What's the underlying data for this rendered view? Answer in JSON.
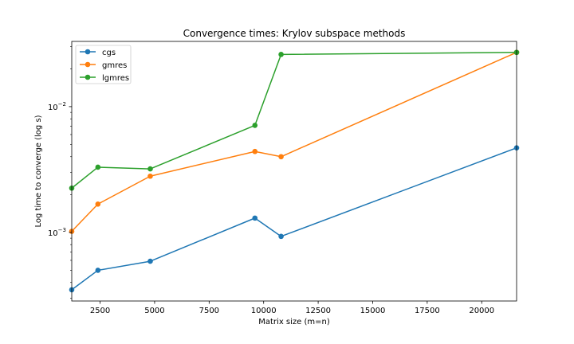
{
  "chart_data": {
    "type": "line",
    "title": "Convergence times: Krylov subspace methods",
    "xlabel": "Matrix size (m=n)",
    "ylabel": "Log time to converge (log s)",
    "xlim": [
      1200,
      21600
    ],
    "ylim": [
      0.000285,
      0.033
    ],
    "yscale": "log",
    "x": [
      1200,
      2400,
      4800,
      9600,
      10800,
      21600
    ],
    "x_ticks": [
      2500,
      5000,
      7500,
      10000,
      12500,
      15000,
      17500,
      20000
    ],
    "x_tick_labels": [
      "2500",
      "5000",
      "7500",
      "10000",
      "12500",
      "15000",
      "17500",
      "20000"
    ],
    "y_ticks": [
      0.001,
      0.01
    ],
    "y_tick_labels": [
      {
        "base": "10",
        "exp": "−3"
      },
      {
        "base": "10",
        "exp": "−2"
      }
    ],
    "grid": false,
    "legend_position": "top-left",
    "series": [
      {
        "name": "cgs",
        "color": "#1f77b4",
        "values": [
          0.00035,
          0.0005,
          0.00059,
          0.0013,
          0.00093,
          0.0047
        ]
      },
      {
        "name": "gmres",
        "color": "#ff7f0e",
        "values": [
          0.00102,
          0.00168,
          0.0028,
          0.0044,
          0.004,
          0.027
        ]
      },
      {
        "name": "lgmres",
        "color": "#2ca02c",
        "values": [
          0.00225,
          0.0033,
          0.0032,
          0.0071,
          0.026,
          0.027
        ]
      }
    ]
  }
}
